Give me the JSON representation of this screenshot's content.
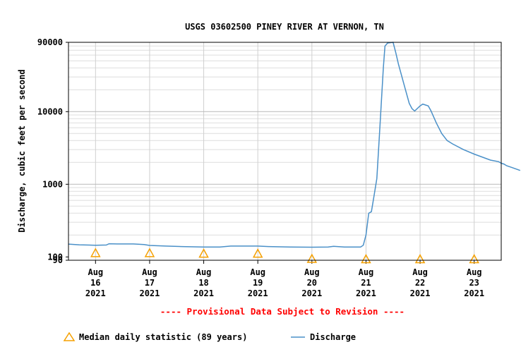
{
  "chart_data": {
    "type": "line",
    "title": "USGS 03602500 PINEY RIVER AT VERNON, TN",
    "ylabel": "Discharge, cubic feet per second",
    "xlabel": "",
    "y_scale": "log",
    "ylim": [
      90,
      90000
    ],
    "y_ticks": [
      {
        "value": 90,
        "label": "90"
      },
      {
        "value": 100,
        "label": "100"
      },
      {
        "value": 1000,
        "label": "1000"
      },
      {
        "value": 10000,
        "label": "10000"
      },
      {
        "value": 90000,
        "label": "90000"
      }
    ],
    "x_ticks": [
      {
        "month": "Aug",
        "day": "16",
        "year": "2021",
        "day_index": 0
      },
      {
        "month": "Aug",
        "day": "17",
        "year": "2021",
        "day_index": 1
      },
      {
        "month": "Aug",
        "day": "18",
        "year": "2021",
        "day_index": 2
      },
      {
        "month": "Aug",
        "day": "19",
        "year": "2021",
        "day_index": 3
      },
      {
        "month": "Aug",
        "day": "20",
        "year": "2021",
        "day_index": 4
      },
      {
        "month": "Aug",
        "day": "21",
        "year": "2021",
        "day_index": 5
      },
      {
        "month": "Aug",
        "day": "22",
        "year": "2021",
        "day_index": 6
      },
      {
        "month": "Aug",
        "day": "23",
        "year": "2021",
        "day_index": 7
      }
    ],
    "xlim_days": [
      -0.5,
      7.5
    ],
    "grid": true,
    "provisional_note": "---- Provisional Data Subject to Revision ----",
    "series": [
      {
        "name": "Discharge",
        "color": "#4a90c8",
        "points": [
          [
            -0.5,
            150
          ],
          [
            -0.3,
            147
          ],
          [
            0.0,
            145
          ],
          [
            0.2,
            146
          ],
          [
            0.25,
            152
          ],
          [
            0.4,
            151
          ],
          [
            0.7,
            151
          ],
          [
            0.9,
            148
          ],
          [
            1.0,
            144
          ],
          [
            1.3,
            141
          ],
          [
            1.6,
            139
          ],
          [
            2.0,
            137
          ],
          [
            2.3,
            137
          ],
          [
            2.5,
            141
          ],
          [
            2.8,
            141
          ],
          [
            3.0,
            141
          ],
          [
            3.2,
            139
          ],
          [
            3.6,
            137
          ],
          [
            4.0,
            136
          ],
          [
            4.3,
            137
          ],
          [
            4.4,
            140
          ],
          [
            4.6,
            137
          ],
          [
            4.9,
            137
          ],
          [
            4.95,
            145
          ],
          [
            5.0,
            200
          ],
          [
            5.05,
            400
          ],
          [
            5.1,
            420
          ],
          [
            5.15,
            700
          ],
          [
            5.2,
            1200
          ],
          [
            5.25,
            5000
          ],
          [
            5.32,
            40000
          ],
          [
            5.35,
            80000
          ],
          [
            5.4,
            88000
          ],
          [
            5.5,
            90000
          ],
          [
            5.55,
            65000
          ],
          [
            5.6,
            45000
          ],
          [
            5.7,
            24000
          ],
          [
            5.8,
            13000
          ],
          [
            5.85,
            11000
          ],
          [
            5.9,
            10200
          ],
          [
            6.0,
            12000
          ],
          [
            6.05,
            12700
          ],
          [
            6.15,
            12000
          ],
          [
            6.2,
            10300
          ],
          [
            6.3,
            7000
          ],
          [
            6.4,
            5000
          ],
          [
            6.5,
            4000
          ],
          [
            6.6,
            3600
          ],
          [
            6.8,
            3000
          ],
          [
            7.0,
            2600
          ],
          [
            7.3,
            2150
          ],
          [
            7.45,
            2050
          ],
          [
            7.5,
            1950
          ],
          [
            7.55,
            1900
          ],
          [
            7.6,
            1800
          ],
          [
            7.7,
            1700
          ],
          [
            7.8,
            1600
          ],
          [
            7.85,
            1550
          ]
        ]
      },
      {
        "name": "Median daily statistic (89 years)",
        "color": "#f5a000",
        "marker": "triangle",
        "points": [
          [
            0.0,
            113
          ],
          [
            1.0,
            113
          ],
          [
            2.0,
            111
          ],
          [
            3.0,
            111
          ],
          [
            4.0,
            94
          ],
          [
            5.0,
            93
          ],
          [
            6.0,
            93
          ],
          [
            7.0,
            93
          ]
        ]
      }
    ],
    "legend": {
      "placement": "bottom",
      "items": [
        {
          "label": "Median daily statistic (89 years)",
          "symbol": "triangle",
          "color": "#f5a000"
        },
        {
          "label": "Discharge",
          "symbol": "line",
          "color": "#4a90c8"
        }
      ]
    }
  }
}
